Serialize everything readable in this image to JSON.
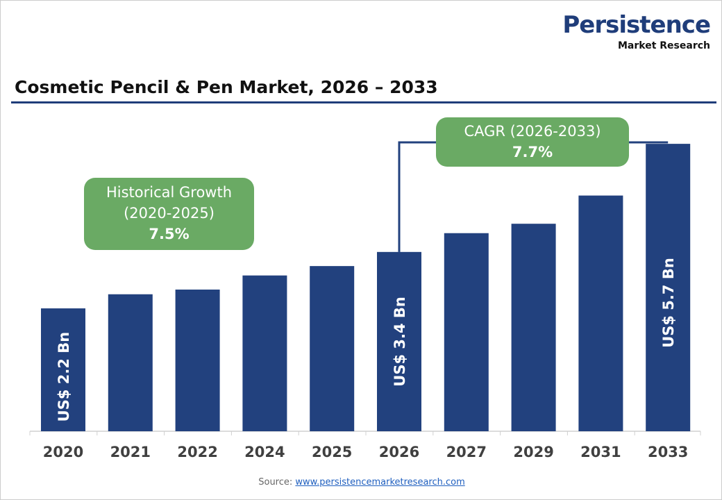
{
  "logo": {
    "name": "Persistence",
    "tagline": "Market Research"
  },
  "chart_data": {
    "type": "bar",
    "title": "Cosmetic Pencil & Pen Market, 2026 – 2033",
    "categories": [
      "2020",
      "2021",
      "2022",
      "2024",
      "2025",
      "2026",
      "2027",
      "2029",
      "2031",
      "2033"
    ],
    "values": [
      2.2,
      2.5,
      2.6,
      2.9,
      3.1,
      3.4,
      3.8,
      4.0,
      4.6,
      5.7
    ],
    "data_labels": {
      "2020": "US$ 2.2 Bn",
      "2026": "US$ 3.4 Bn",
      "2033": "US$ 5.7 Bn"
    },
    "unit": "US$ Bn",
    "bar_color": "#22417e",
    "grid": false,
    "annotations": [
      {
        "label": "Historical Growth",
        "period": "(2020-2025)",
        "value": "7.5%"
      },
      {
        "label": "CAGR (2026-2033)",
        "value": "7.7%"
      }
    ]
  },
  "source": {
    "label": "Source:",
    "link": "www.persistencemarketresearch.com"
  }
}
